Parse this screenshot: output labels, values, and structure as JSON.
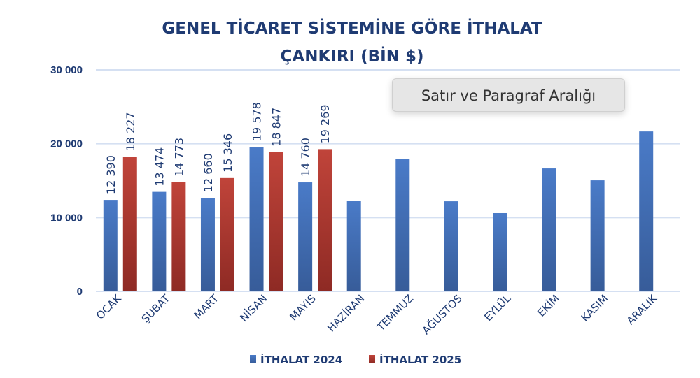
{
  "chart_data": {
    "type": "bar",
    "title": "GENEL TİCARET SİSTEMİNE GÖRE İTHALAT",
    "subtitle": "ÇANKIRI (BİN $)",
    "xlabel": "",
    "ylabel": "",
    "ylim": [
      0,
      30000
    ],
    "yticks": [
      0,
      10000,
      20000,
      30000
    ],
    "ytick_labels": [
      "0",
      "10 000",
      "20 000",
      "30 000"
    ],
    "grid": true,
    "legend_position": "bottom",
    "categories": [
      "OCAK",
      "ŞUBAT",
      "MART",
      "NİSAN",
      "MAYIS",
      "HAZİRAN",
      "TEMMUZ",
      "AĞUSTOS",
      "EYLÜL",
      "EKİM",
      "KASIM",
      "ARALIK"
    ],
    "series": [
      {
        "name": "İTHALAT 2024",
        "color": "#4472c4",
        "values": [
          12390,
          13474,
          12660,
          19578,
          14760,
          12300,
          17970,
          12200,
          10600,
          16650,
          15040,
          21660
        ],
        "labels": [
          "12 390",
          "13 474",
          "12 660",
          "19 578",
          "14 760",
          null,
          null,
          null,
          null,
          null,
          null,
          null
        ]
      },
      {
        "name": "İTHALAT 2025",
        "color": "#c0392b",
        "values": [
          18227,
          14773,
          15346,
          18847,
          19269,
          null,
          null,
          null,
          null,
          null,
          null,
          null
        ],
        "labels": [
          "18 227",
          "14 773",
          "15 346",
          "18 847",
          "19 269",
          null,
          null,
          null,
          null,
          null,
          null,
          null
        ]
      }
    ]
  },
  "tooltip": {
    "text": "Satır ve Paragraf Aralığı"
  }
}
